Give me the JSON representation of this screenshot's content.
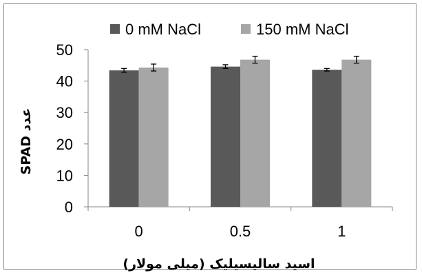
{
  "chart_data": {
    "type": "bar",
    "title": "",
    "xlabel": "اسید سالیسیلیک (میلی مولار)",
    "ylabel": "SPAD عدد",
    "categories": [
      "0",
      "0.5",
      "1"
    ],
    "ylim": [
      0,
      50
    ],
    "yticks": [
      "0",
      "10",
      "20",
      "30",
      "40",
      "50"
    ],
    "grid": false,
    "legend_position": "top",
    "series": [
      {
        "name": "0 mM NaCl",
        "color": "#595959",
        "values": [
          43.4,
          44.6,
          43.6
        ],
        "errors": [
          0.6,
          0.6,
          0.4
        ]
      },
      {
        "name": "150 mM NaCl",
        "color": "#a6a6a6",
        "values": [
          44.3,
          46.8,
          46.8
        ],
        "errors": [
          1.1,
          1.1,
          1.1
        ]
      }
    ],
    "error_bars": true
  }
}
